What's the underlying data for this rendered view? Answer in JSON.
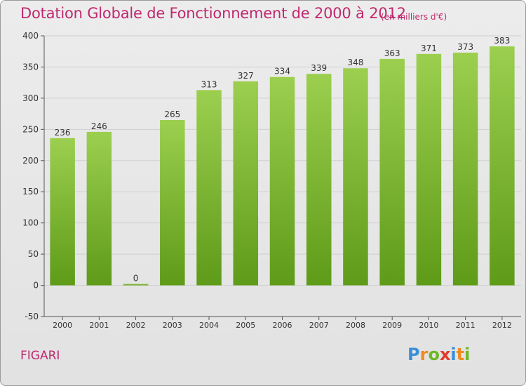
{
  "header": {
    "title": "Dotation Globale de Fonctionnement de 2000 à 2012",
    "unit": "(en milliers d'€)"
  },
  "footer": {
    "commune": "FIGARI",
    "logo": {
      "letters": [
        "P",
        "r",
        "o",
        "x",
        "i",
        "t",
        "i"
      ],
      "colors": [
        "#3a8fd8",
        "#f08a1c",
        "#6fb827",
        "#e03a2e",
        "#3a8fd8",
        "#f08a1c",
        "#6fb827"
      ]
    }
  },
  "chart_data": {
    "type": "bar",
    "categories": [
      "2000",
      "2001",
      "2002",
      "2003",
      "2004",
      "2005",
      "2006",
      "2007",
      "2008",
      "2009",
      "2010",
      "2011",
      "2012"
    ],
    "values": [
      236,
      246,
      0,
      265,
      313,
      327,
      334,
      339,
      348,
      363,
      371,
      373,
      383
    ],
    "data_labels": [
      "236",
      "246",
      "0",
      "265",
      "313",
      "327",
      "334",
      "339",
      "348",
      "363",
      "371",
      "373",
      "383"
    ],
    "ylim": [
      -50,
      400
    ],
    "yticks": [
      -50,
      0,
      50,
      100,
      150,
      200,
      250,
      300,
      350,
      400
    ],
    "ytick_labels": [
      "-50",
      "0",
      "50",
      "100",
      "150",
      "200",
      "250",
      "300",
      "350",
      "400"
    ],
    "grid": true,
    "colors": {
      "bar_light": "#9ccf4f",
      "bar_dark": "#5e9b18",
      "grid": "#cfcfcf",
      "text": "#333333"
    }
  }
}
